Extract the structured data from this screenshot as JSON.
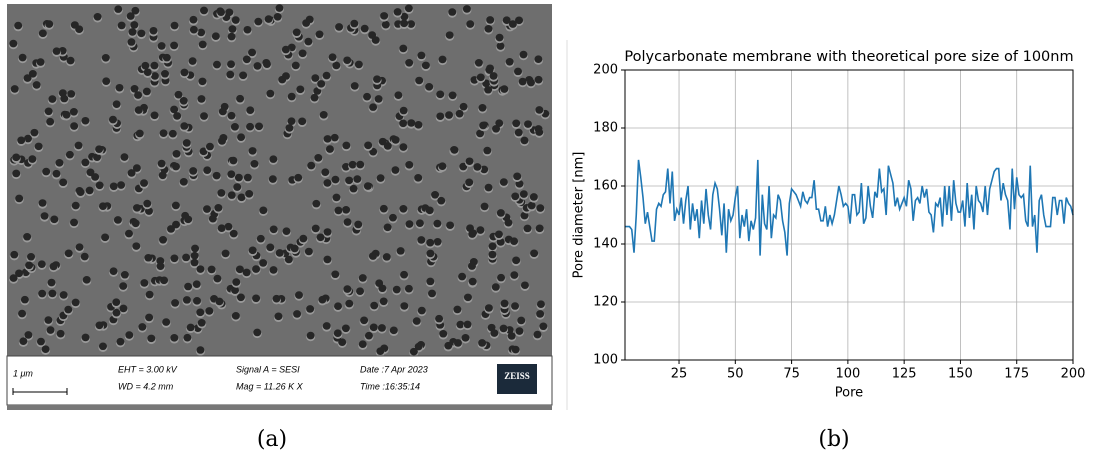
{
  "image_a": {
    "scale": "1 μm",
    "eht": "EHT =  3.00 kV",
    "wd": "WD =  4.2 mm",
    "signal": "Signal A = SESI",
    "mag": "Mag =   11.26 K X",
    "date": "Date :7 Apr 2023",
    "time": "Time :16:35:14",
    "logo": "ZEISS"
  },
  "captions": [
    "(a)",
    "(b)"
  ],
  "chart_data": {
    "type": "line",
    "title": "Polycarbonate membrane with theoretical pore size of 100nm",
    "x_label": "Pore",
    "y_label": "Pore diameter [nm]",
    "xlim": [
      1,
      200
    ],
    "ylim": [
      100,
      200
    ],
    "xticks": [
      25,
      50,
      75,
      100,
      125,
      150,
      175,
      200
    ],
    "yticks": [
      100,
      120,
      140,
      160,
      180,
      200
    ],
    "grid": true,
    "x": [
      1,
      2,
      3,
      4,
      5,
      6,
      7,
      8,
      9,
      10,
      11,
      12,
      13,
      14,
      15,
      16,
      17,
      18,
      19,
      20,
      21,
      22,
      23,
      24,
      25,
      26,
      27,
      28,
      29,
      30,
      31,
      32,
      33,
      34,
      35,
      36,
      37,
      38,
      39,
      40,
      41,
      42,
      43,
      44,
      45,
      46,
      47,
      48,
      49,
      50,
      51,
      52,
      53,
      54,
      55,
      56,
      57,
      58,
      59,
      60,
      61,
      62,
      63,
      64,
      65,
      66,
      67,
      68,
      69,
      70,
      71,
      72,
      73,
      74,
      75,
      76,
      77,
      78,
      79,
      80,
      81,
      82,
      83,
      84,
      85,
      86,
      87,
      88,
      89,
      90,
      91,
      92,
      93,
      94,
      95,
      96,
      97,
      98,
      99,
      100,
      101,
      102,
      103,
      104,
      105,
      106,
      107,
      108,
      109,
      110,
      111,
      112,
      113,
      114,
      115,
      116,
      117,
      118,
      119,
      120,
      121,
      122,
      123,
      124,
      125,
      126,
      127,
      128,
      129,
      130,
      131,
      132,
      133,
      134,
      135,
      136,
      137,
      138,
      139,
      140,
      141,
      142,
      143,
      144,
      145,
      146,
      147,
      148,
      149,
      150,
      151,
      152,
      153,
      154,
      155,
      156,
      157,
      158,
      159,
      160,
      161,
      162,
      163,
      164,
      165,
      166,
      167,
      168,
      169,
      170,
      171,
      172,
      173,
      174,
      175,
      176,
      177,
      178,
      179,
      180,
      181,
      182,
      183,
      184,
      185,
      186,
      187,
      188,
      189,
      190,
      191,
      192,
      193,
      194,
      195,
      196,
      197,
      198,
      199,
      200
    ],
    "series": [
      {
        "color": "#1f77b4",
        "values": [
          146,
          146,
          146,
          145,
          137,
          150,
          169,
          163,
          156,
          147,
          151,
          146,
          141,
          141,
          152,
          154,
          153,
          157,
          158,
          166,
          154,
          165,
          148,
          152,
          150,
          156,
          147,
          155,
          160,
          145,
          154,
          148,
          152,
          142,
          155,
          147,
          159,
          150,
          145,
          157,
          161,
          159,
          152,
          143,
          154,
          137,
          152,
          148,
          150,
          156,
          160,
          142,
          150,
          146,
          152,
          141,
          148,
          145,
          149,
          169,
          136,
          157,
          147,
          145,
          160,
          142,
          150,
          149,
          157,
          155,
          148,
          144,
          136,
          154,
          159,
          158,
          157,
          155,
          153,
          158,
          155,
          154,
          156,
          156,
          162,
          152,
          152,
          148,
          148,
          153,
          146,
          150,
          147,
          150,
          155,
          160,
          157,
          153,
          154,
          153,
          147,
          157,
          157,
          150,
          151,
          161,
          147,
          149,
          160,
          153,
          149,
          158,
          156,
          166,
          158,
          159,
          150,
          167,
          164,
          161,
          153,
          156,
          152,
          154,
          156,
          153,
          162,
          159,
          148,
          155,
          156,
          154,
          160,
          156,
          159,
          151,
          150,
          144,
          154,
          153,
          156,
          146,
          160,
          150,
          160,
          148,
          162,
          154,
          151,
          151,
          155,
          146,
          161,
          149,
          157,
          145,
          160,
          155,
          154,
          151,
          160,
          150,
          159,
          162,
          165,
          166,
          166,
          155,
          161,
          157,
          155,
          145,
          166,
          152,
          163,
          157,
          156,
          157,
          148,
          146,
          167,
          146,
          150,
          137,
          155,
          157,
          150,
          146,
          146,
          146,
          156,
          156,
          150,
          155,
          155,
          147,
          156,
          154,
          153,
          150
        ]
      }
    ]
  }
}
